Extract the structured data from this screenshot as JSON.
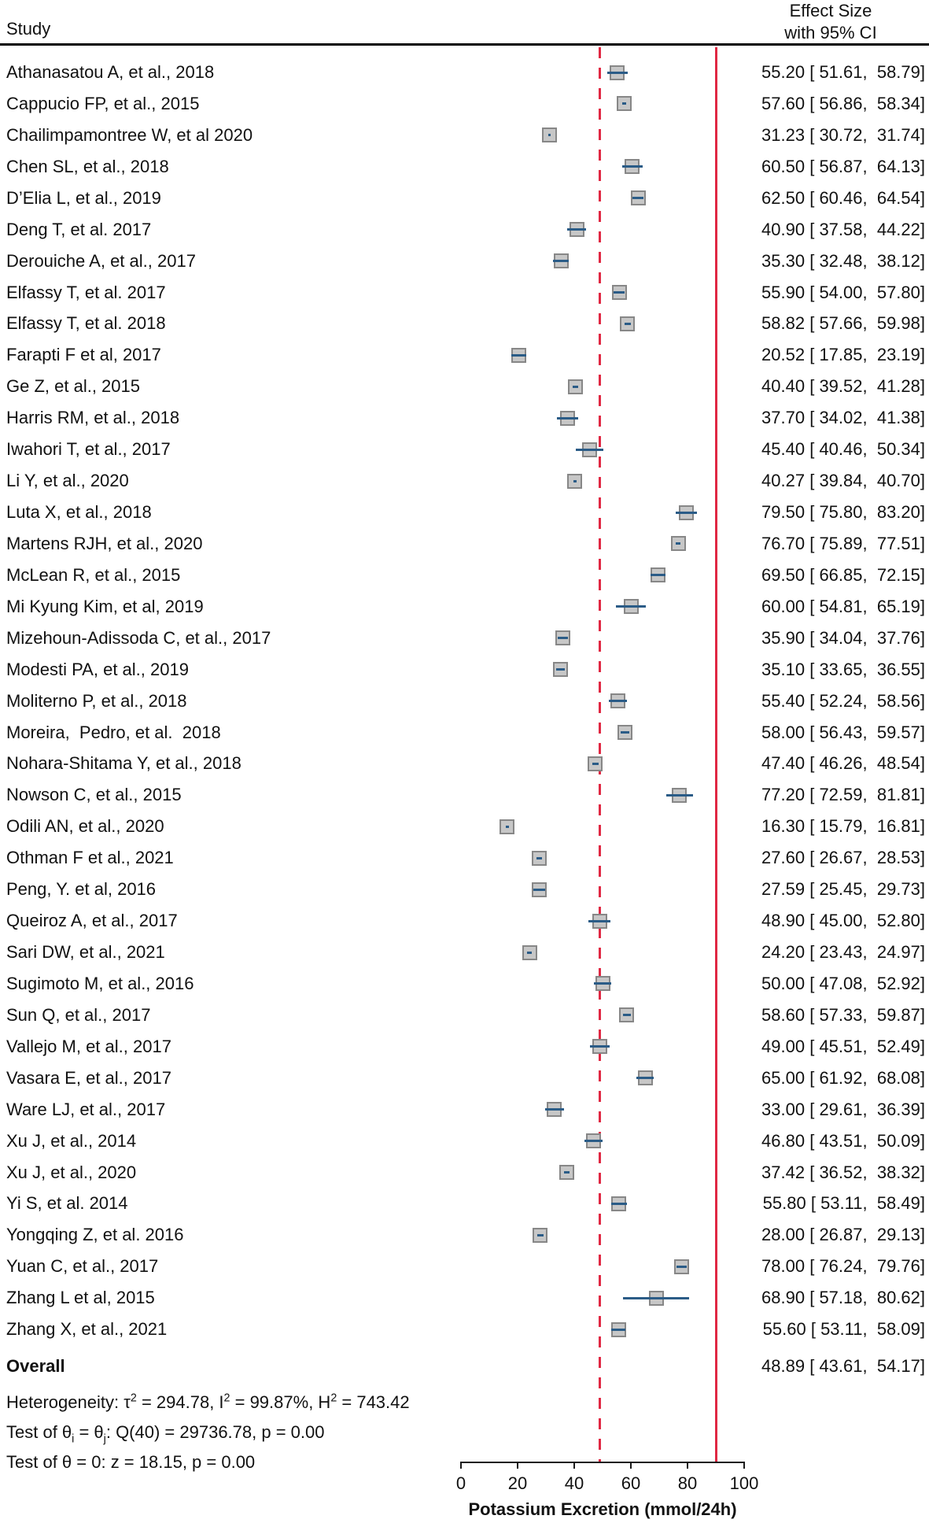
{
  "header": {
    "study_col": "Study",
    "effect_line1": "Effect Size",
    "effect_line2": "with 95% CI"
  },
  "chart_data": {
    "type": "scatter",
    "variant": "forest-plot",
    "xlabel": "Potassium Excretion (mmol/24h)",
    "xlim": [
      0,
      100
    ],
    "x_ticks": [
      0,
      20,
      40,
      60,
      80,
      100
    ],
    "grid": false,
    "value_format": "est [ lo,  hi]",
    "reference_lines": [
      {
        "x": 48.89,
        "style": "dashed",
        "meaning": "overall-estimate"
      },
      {
        "x": 90,
        "style": "solid",
        "meaning": "reference-value"
      }
    ],
    "studies": [
      {
        "label": "Athanasatou A, et al., 2018",
        "est": 55.2,
        "lo": 51.61,
        "hi": 58.79
      },
      {
        "label": "Cappucio FP, et al., 2015",
        "est": 57.6,
        "lo": 56.86,
        "hi": 58.34
      },
      {
        "label": "Chailimpamontree W, et al 2020",
        "est": 31.23,
        "lo": 30.72,
        "hi": 31.74
      },
      {
        "label": "Chen SL, et al., 2018",
        "est": 60.5,
        "lo": 56.87,
        "hi": 64.13
      },
      {
        "label": "D’Elia L, et al., 2019",
        "est": 62.5,
        "lo": 60.46,
        "hi": 64.54
      },
      {
        "label": "Deng T, et al. 2017",
        "est": 40.9,
        "lo": 37.58,
        "hi": 44.22
      },
      {
        "label": "Derouiche A, et al., 2017",
        "est": 35.3,
        "lo": 32.48,
        "hi": 38.12
      },
      {
        "label": "Elfassy T, et al. 2017",
        "est": 55.9,
        "lo": 54.0,
        "hi": 57.8
      },
      {
        "label": "Elfassy T, et al. 2018",
        "est": 58.82,
        "lo": 57.66,
        "hi": 59.98
      },
      {
        "label": "Farapti F et al, 2017",
        "est": 20.52,
        "lo": 17.85,
        "hi": 23.19
      },
      {
        "label": "Ge Z, et al., 2015",
        "est": 40.4,
        "lo": 39.52,
        "hi": 41.28
      },
      {
        "label": "Harris RM, et al., 2018",
        "est": 37.7,
        "lo": 34.02,
        "hi": 41.38
      },
      {
        "label": "Iwahori T, et al., 2017",
        "est": 45.4,
        "lo": 40.46,
        "hi": 50.34
      },
      {
        "label": "Li Y, et al., 2020",
        "est": 40.27,
        "lo": 39.84,
        "hi": 40.7
      },
      {
        "label": "Luta X, et al., 2018",
        "est": 79.5,
        "lo": 75.8,
        "hi": 83.2
      },
      {
        "label": "Martens RJH, et al., 2020",
        "est": 76.7,
        "lo": 75.89,
        "hi": 77.51
      },
      {
        "label": "McLean R, et al., 2015",
        "est": 69.5,
        "lo": 66.85,
        "hi": 72.15
      },
      {
        "label": "Mi Kyung Kim, et al, 2019",
        "est": 60.0,
        "lo": 54.81,
        "hi": 65.19
      },
      {
        "label": "Mizehoun-Adissoda C, et al., 2017",
        "est": 35.9,
        "lo": 34.04,
        "hi": 37.76
      },
      {
        "label": "Modesti PA, et al., 2019",
        "est": 35.1,
        "lo": 33.65,
        "hi": 36.55
      },
      {
        "label": "Moliterno P, et al., 2018",
        "est": 55.4,
        "lo": 52.24,
        "hi": 58.56
      },
      {
        "label": "Moreira,  Pedro, et al.  2018",
        "est": 58.0,
        "lo": 56.43,
        "hi": 59.57
      },
      {
        "label": "Nohara-Shitama Y, et al., 2018",
        "est": 47.4,
        "lo": 46.26,
        "hi": 48.54
      },
      {
        "label": "Nowson C, et al., 2015",
        "est": 77.2,
        "lo": 72.59,
        "hi": 81.81
      },
      {
        "label": "Odili AN, et al., 2020",
        "est": 16.3,
        "lo": 15.79,
        "hi": 16.81
      },
      {
        "label": "Othman F et al., 2021",
        "est": 27.6,
        "lo": 26.67,
        "hi": 28.53
      },
      {
        "label": "Peng, Y. et al, 2016",
        "est": 27.59,
        "lo": 25.45,
        "hi": 29.73
      },
      {
        "label": "Queiroz A, et al., 2017",
        "est": 48.9,
        "lo": 45.0,
        "hi": 52.8
      },
      {
        "label": "Sari DW, et al., 2021",
        "est": 24.2,
        "lo": 23.43,
        "hi": 24.97
      },
      {
        "label": "Sugimoto M, et al., 2016",
        "est": 50.0,
        "lo": 47.08,
        "hi": 52.92
      },
      {
        "label": "Sun Q, et al., 2017",
        "est": 58.6,
        "lo": 57.33,
        "hi": 59.87
      },
      {
        "label": "Vallejo M, et al., 2017",
        "est": 49.0,
        "lo": 45.51,
        "hi": 52.49
      },
      {
        "label": "Vasara E, et al., 2017",
        "est": 65.0,
        "lo": 61.92,
        "hi": 68.08
      },
      {
        "label": "Ware LJ, et al., 2017",
        "est": 33.0,
        "lo": 29.61,
        "hi": 36.39
      },
      {
        "label": "Xu J, et al., 2014",
        "est": 46.8,
        "lo": 43.51,
        "hi": 50.09
      },
      {
        "label": "Xu J, et al., 2020",
        "est": 37.42,
        "lo": 36.52,
        "hi": 38.32
      },
      {
        "label": "Yi S, et al. 2014",
        "est": 55.8,
        "lo": 53.11,
        "hi": 58.49
      },
      {
        "label": "Yongqing Z, et al. 2016",
        "est": 28.0,
        "lo": 26.87,
        "hi": 29.13
      },
      {
        "label": "Yuan C, et al., 2017",
        "est": 78.0,
        "lo": 76.24,
        "hi": 79.76
      },
      {
        "label": "Zhang L et al, 2015",
        "est": 68.9,
        "lo": 57.18,
        "hi": 80.62
      },
      {
        "label": "Zhang X, et al., 2021",
        "est": 55.6,
        "lo": 53.11,
        "hi": 58.09
      }
    ],
    "overall": {
      "label": "Overall",
      "est": 48.89,
      "lo": 43.61,
      "hi": 54.17
    }
  },
  "stats": {
    "heterogeneity": [
      {
        "t": "Heterogeneity: τ"
      },
      {
        "sup": "2"
      },
      {
        "t": " = 294.78, I"
      },
      {
        "sup": "2"
      },
      {
        "t": " = 99.87%, H"
      },
      {
        "sup": "2"
      },
      {
        "t": " = 743.42"
      }
    ],
    "test_homogeneity": [
      {
        "t": "Test of θ"
      },
      {
        "sub": "i"
      },
      {
        "t": " = θ"
      },
      {
        "sub": "j"
      },
      {
        "t": ": Q(40) = 29736.78, p = 0.00"
      }
    ],
    "test_zero": [
      {
        "t": "Test of θ = 0: z = 18.15, p = 0.00"
      }
    ]
  },
  "colors": {
    "reference_red": "#e02843",
    "ci_line_blue": "#2b5c87",
    "marker_fill": "#c7c7c7",
    "marker_border": "#878787",
    "text": "#111111"
  }
}
